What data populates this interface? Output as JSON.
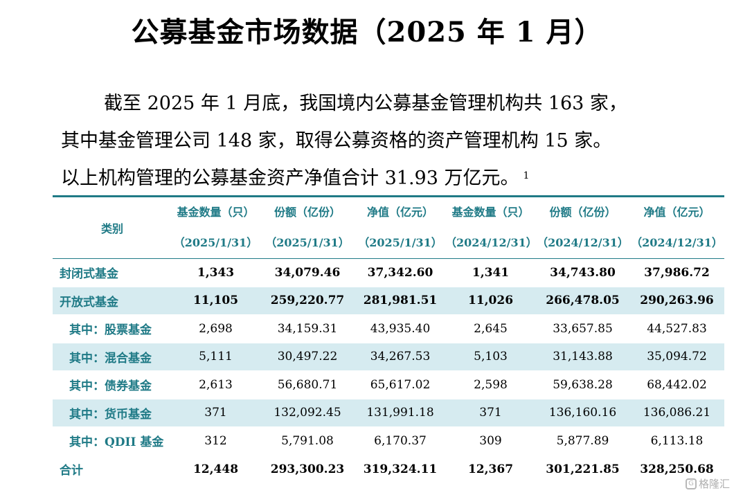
{
  "title": "公募基金市场数据（2025 年 1 月）",
  "paragraph": {
    "line1": "截至 2025 年 1 月底，我国境内公募基金管理机构共 163 家，",
    "line2": "其中基金管理公司 148 家，取得公募资格的资产管理机构 15 家。",
    "line3": "以上机构管理的公募基金资产净值合计 31.93 万亿元。",
    "footnote_mark": "1"
  },
  "table": {
    "category_header": "类别",
    "headers": [
      {
        "line1": "基金数量（只）",
        "line2": "（2025/1/31）"
      },
      {
        "line1": "份额（亿份）",
        "line2": "（2025/1/31）"
      },
      {
        "line1": "净值（亿元）",
        "line2": "（2025/1/31）"
      },
      {
        "line1": "基金数量（只）",
        "line2": "（2024/12/31）"
      },
      {
        "line1": "份额（亿份）",
        "line2": "（2024/12/31）"
      },
      {
        "line1": "净值（亿元）",
        "line2": "（2024/12/31）"
      }
    ],
    "rows": [
      {
        "name": "封闭式基金",
        "values": [
          "1,343",
          "34,079.46",
          "37,342.60",
          "1,341",
          "34,743.80",
          "37,986.72"
        ]
      },
      {
        "name": "开放式基金",
        "values": [
          "11,105",
          "259,220.77",
          "281,981.51",
          "11,026",
          "266,478.05",
          "290,263.96"
        ]
      },
      {
        "name": "其中：股票基金",
        "values": [
          "2,698",
          "34,159.31",
          "43,935.40",
          "2,645",
          "33,657.85",
          "44,527.83"
        ]
      },
      {
        "name": "其中：混合基金",
        "values": [
          "5,111",
          "30,497.22",
          "34,267.53",
          "5,103",
          "31,143.88",
          "35,094.72"
        ]
      },
      {
        "name": "其中：债券基金",
        "values": [
          "2,613",
          "56,680.71",
          "65,617.02",
          "2,598",
          "59,638.28",
          "68,442.02"
        ]
      },
      {
        "name": "其中：货币基金",
        "values": [
          "371",
          "132,092.45",
          "131,991.18",
          "371",
          "136,160.16",
          "136,086.21"
        ]
      },
      {
        "name": "其中：QDII 基金",
        "values": [
          "312",
          "5,791.08",
          "6,170.37",
          "309",
          "5,877.89",
          "6,113.18"
        ]
      },
      {
        "name": "合计",
        "values": [
          "12,448",
          "293,300.23",
          "319,324.11",
          "12,367",
          "301,221.85",
          "328,250.68"
        ]
      }
    ]
  },
  "watermark": {
    "icon": "gelonghui-logo-icon",
    "text": "格隆汇"
  },
  "colors": {
    "accent": "#1f7a86",
    "row_shade": "#d6ebf0"
  }
}
